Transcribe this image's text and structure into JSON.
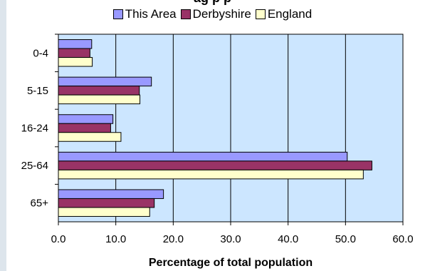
{
  "chart_data": {
    "type": "bar",
    "orientation": "horizontal",
    "title": "",
    "title_fragment": "ag              p p",
    "xlabel": "Percentage of total population",
    "ylabel": "",
    "xlim": [
      0,
      60
    ],
    "x_ticks": [
      "0.0",
      "10.0",
      "20.0",
      "30.0",
      "40.0",
      "50.0",
      "60.0"
    ],
    "categories": [
      "0-4",
      "5-15",
      "16-24",
      "25-64",
      "65+"
    ],
    "series": [
      {
        "name": "This Area",
        "color": "#9999ff",
        "values": [
          5.8,
          16.2,
          9.5,
          50.3,
          18.3
        ]
      },
      {
        "name": "Derbyshire",
        "color": "#993366",
        "values": [
          5.5,
          14.1,
          9.1,
          54.6,
          16.7
        ]
      },
      {
        "name": "England",
        "color": "#ffffcc",
        "values": [
          5.9,
          14.2,
          10.9,
          53.1,
          15.9
        ]
      }
    ],
    "grid": true,
    "legend_position": "top",
    "plot_background": "#cce6ff"
  }
}
